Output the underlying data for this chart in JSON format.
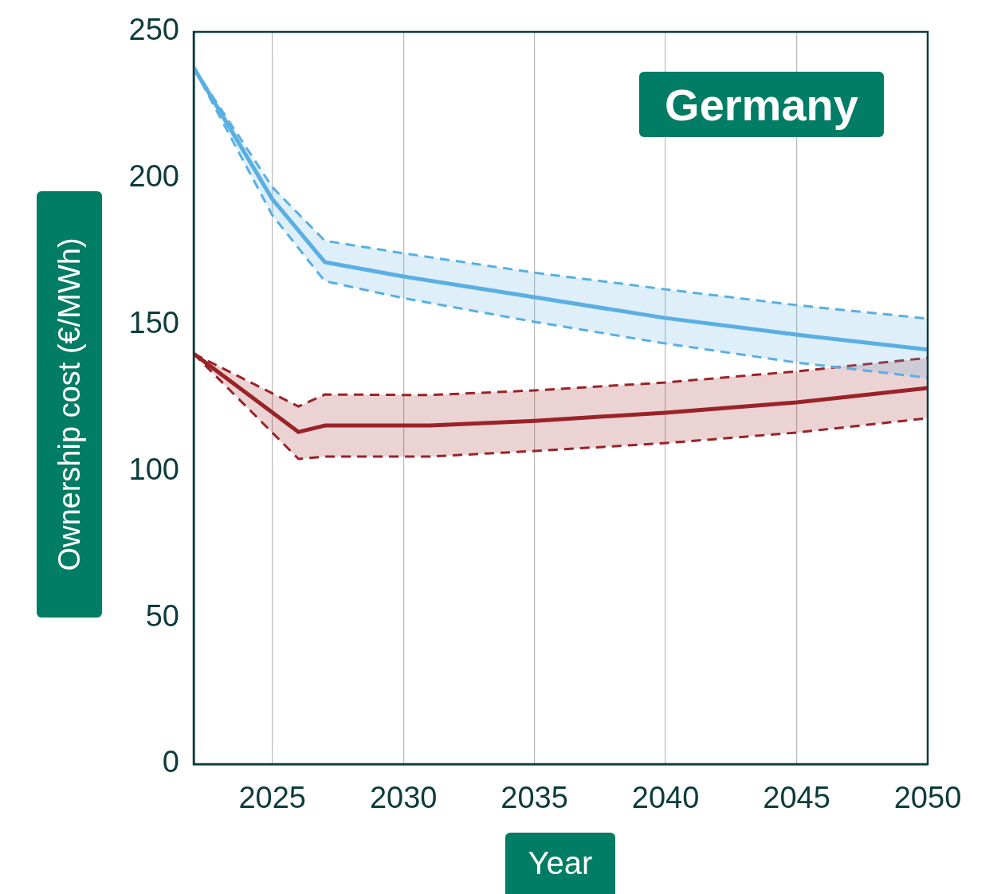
{
  "chart_data": {
    "type": "line",
    "title": "Germany",
    "xlabel": "Year",
    "ylabel": "Ownership cost (€/MWh)",
    "xlim": [
      2022,
      2050
    ],
    "xticks": [
      2025,
      2030,
      2035,
      2040,
      2045,
      2050
    ],
    "ylim": [
      0,
      250
    ],
    "yticks": [
      0,
      50,
      100,
      150,
      200,
      250
    ],
    "grid": "x",
    "legend": false,
    "line_style": "solid",
    "marker": "none",
    "series": [
      {
        "color": "#5aafe3",
        "x": [
          2022,
          2025,
          2027,
          2030,
          2035,
          2040,
          2045,
          2050
        ],
        "values": [
          237.8,
          192.9,
          171.4,
          166.5,
          159.4,
          152.3,
          146.6,
          141.5
        ],
        "upper": [
          237.8,
          197,
          178.7,
          174.4,
          167.8,
          162.1,
          156.7,
          152.1
        ],
        "lower": [
          237.8,
          187.4,
          164.9,
          159.1,
          151,
          143.6,
          137.1,
          131.9
        ]
      },
      {
        "color": "#5aafe3",
        "line_style": "dashed",
        "x": [
          2022,
          2025,
          2027,
          2030,
          2035,
          2040,
          2045,
          2050
        ],
        "values": [
          237.8,
          197,
          178.7,
          174.4,
          167.8,
          162.1,
          156.7,
          152.1
        ]
      },
      {
        "color": "#5aafe3",
        "line_style": "dashed",
        "x": [
          2022,
          2025,
          2027,
          2030,
          2035,
          2040,
          2045,
          2050
        ],
        "values": [
          237.8,
          187.4,
          164.9,
          159.1,
          151,
          143.6,
          137.1,
          131.9
        ]
      },
      {
        "color": "#9a2329",
        "x": [
          2022,
          2026,
          2027,
          2031,
          2035,
          2040,
          2045,
          2050
        ],
        "values": [
          140.1,
          113.4,
          115.6,
          115.6,
          117.2,
          120,
          123.5,
          128.4
        ],
        "upper": [
          140.1,
          122.1,
          126.2,
          126,
          127.6,
          130.3,
          134.1,
          138.7
        ],
        "lower": [
          140.1,
          104.2,
          105,
          105,
          106.9,
          109.6,
          113.2,
          118.1
        ]
      },
      {
        "color": "#9a2329",
        "line_style": "dashed",
        "x": [
          2022,
          2026,
          2027,
          2031,
          2035,
          2040,
          2045,
          2050
        ],
        "values": [
          140.1,
          122.1,
          126.2,
          126,
          127.6,
          130.3,
          134.1,
          138.7
        ]
      },
      {
        "color": "#9a2329",
        "line_style": "dashed",
        "x": [
          2022,
          2026,
          2027,
          2031,
          2035,
          2040,
          2045,
          2050
        ],
        "values": [
          140.1,
          104.2,
          105,
          105,
          106.9,
          109.6,
          113.2,
          118.1
        ]
      }
    ]
  }
}
